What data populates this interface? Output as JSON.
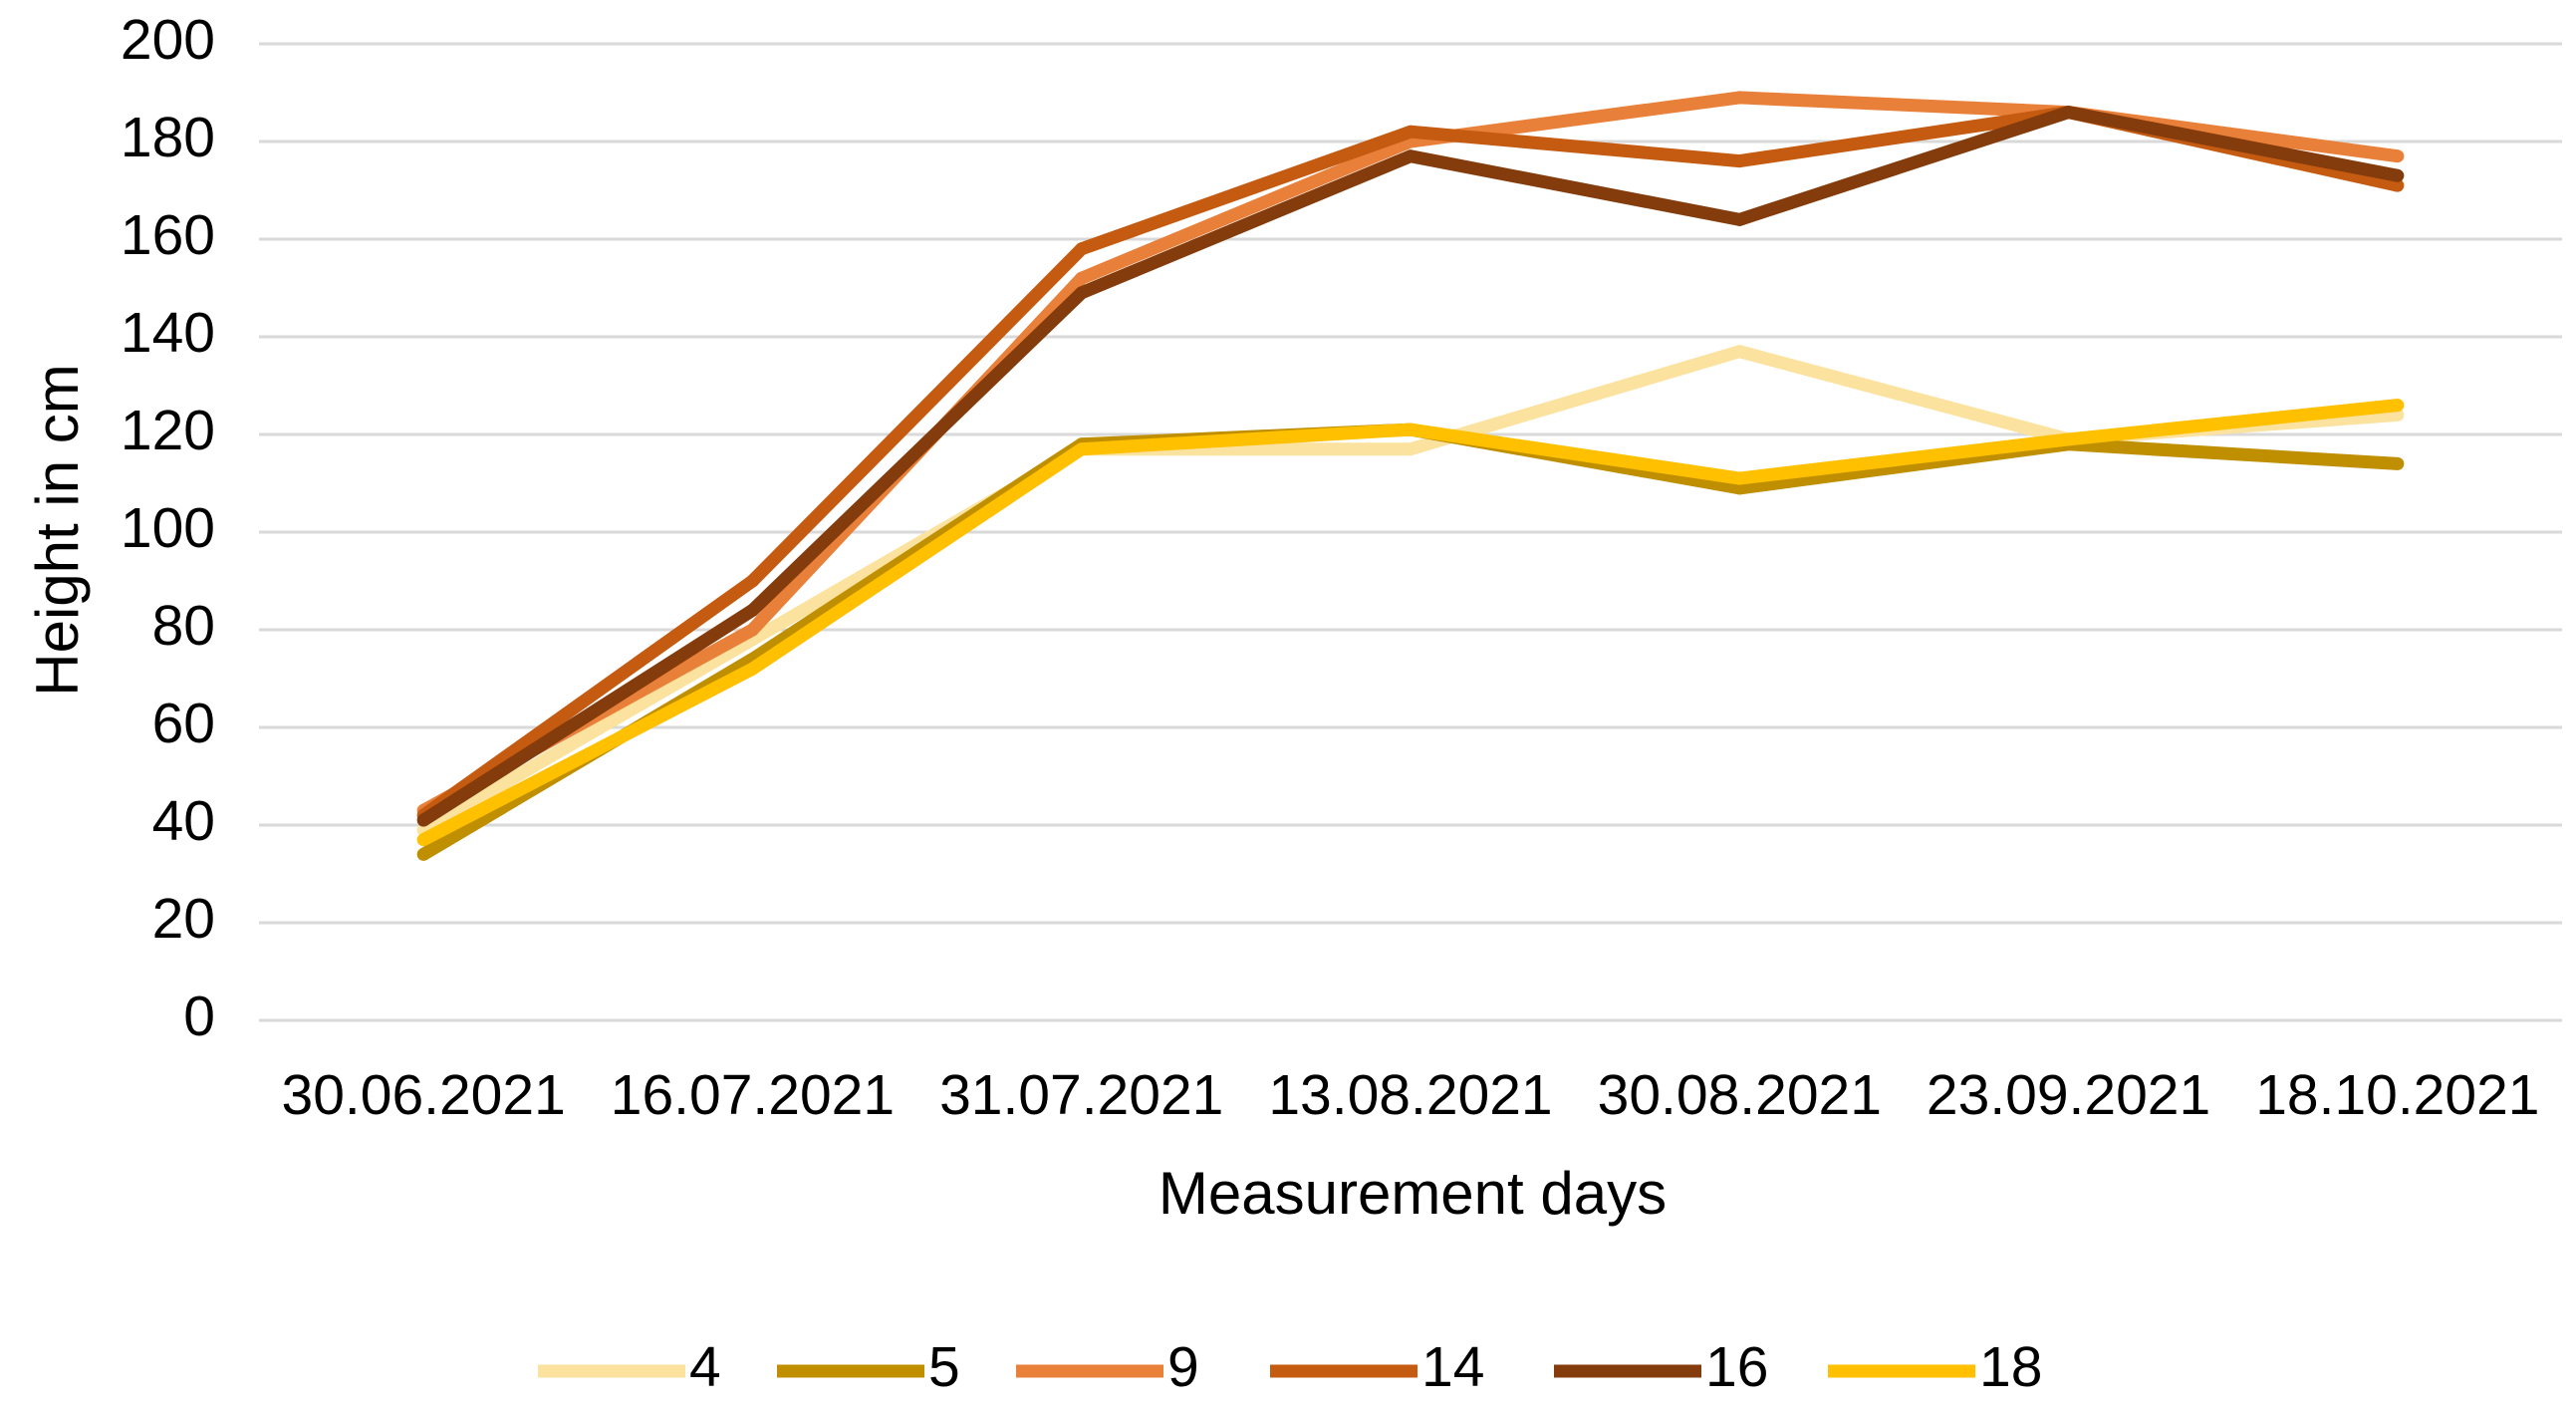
{
  "chart_data": {
    "type": "line",
    "title": "",
    "xlabel": "Measurement days",
    "ylabel": "Height in cm",
    "categories": [
      "30.06.2021",
      "16.07.2021",
      "31.07.2021",
      "13.08.2021",
      "30.08.2021",
      "23.09.2021",
      "18.10.2021"
    ],
    "ylim": [
      0,
      200
    ],
    "yticks": [
      0,
      20,
      40,
      60,
      80,
      100,
      120,
      140,
      160,
      180,
      200
    ],
    "grid": true,
    "legend": "bottom",
    "series": [
      {
        "name": "4",
        "color": "#fbe29e",
        "values": [
          39,
          78,
          117,
          117,
          137,
          119,
          124
        ]
      },
      {
        "name": "5",
        "color": "#bf8f00",
        "values": [
          34,
          74,
          118,
          121,
          109,
          118,
          114
        ]
      },
      {
        "name": "9",
        "color": "#e9803a",
        "values": [
          43,
          80,
          152,
          180,
          189,
          186,
          177
        ]
      },
      {
        "name": "14",
        "color": "#c55a11",
        "values": [
          42,
          90,
          158,
          182,
          176,
          186,
          171
        ]
      },
      {
        "name": "16",
        "color": "#843c0c",
        "values": [
          41,
          84,
          149,
          177,
          164,
          186,
          173
        ]
      },
      {
        "name": "18",
        "color": "#ffc000",
        "values": [
          37,
          72,
          117,
          121,
          111,
          119,
          126
        ]
      }
    ]
  }
}
